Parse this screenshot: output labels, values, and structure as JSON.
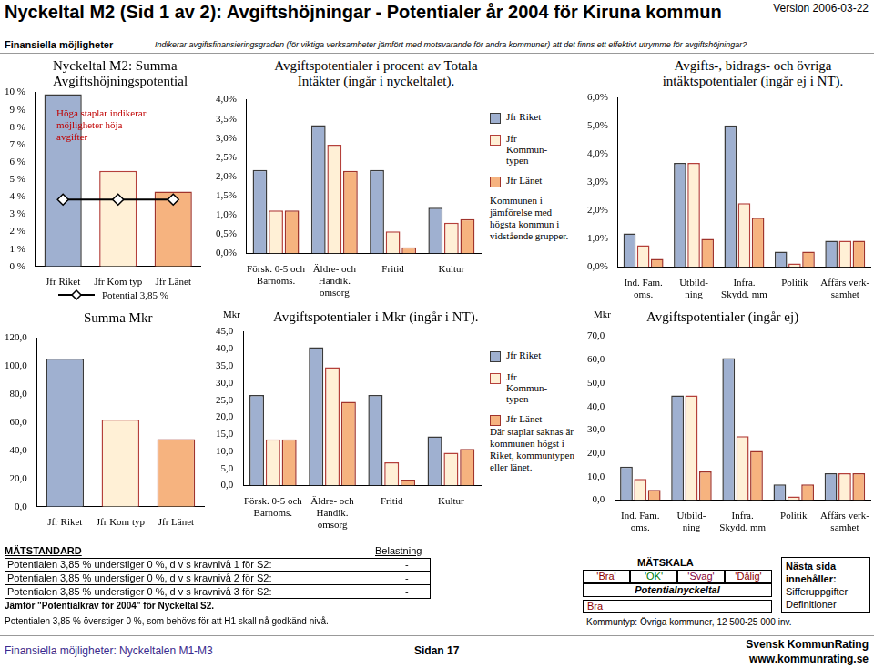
{
  "header": {
    "title": "Nyckeltal M2 (Sid 1 av 2): Avgiftshöjningar - Potentialer år 2004 för Kiruna kommun",
    "version": "Version 2006-03-22",
    "section": "Finansiella möjligheter",
    "description": "Indikerar avgiftsfinansieringsgraden (för viktiga verksamheter jämfört med motsvarande för andra kommuner) att det finns ett effektivt utrymme för avgiftshöjningar?"
  },
  "chart_data": [
    {
      "type": "bar",
      "title": "Nyckeltal M2: Summa Avgiftshöjningspotential",
      "annotation": "Höga staplar indikerar möjligheter höja avgifter",
      "categories": [
        "Jfr Riket",
        "Jfr Kom typ",
        "Jfr Länet"
      ],
      "values": [
        9.9,
        5.5,
        4.3
      ],
      "colors": [
        "#9fb0d0",
        "#fff0d6",
        "#f6b37f"
      ],
      "series": [
        {
          "name": "Potential 3,85 %",
          "type": "line",
          "color": "#000000",
          "marker": "diamond",
          "values": [
            3.85,
            3.85,
            3.85
          ]
        }
      ],
      "legend": "bottom",
      "ylim": [
        0,
        10
      ],
      "yticks": [
        {
          "value": 0,
          "label": "0 %"
        },
        {
          "value": 1,
          "label": "1 %"
        },
        {
          "value": 2,
          "label": "2 %"
        },
        {
          "value": 3,
          "label": "3 %"
        },
        {
          "value": 4,
          "label": "4 %"
        },
        {
          "value": 5,
          "label": "5 %"
        },
        {
          "value": 6,
          "label": "6 %"
        },
        {
          "value": 7,
          "label": "7 %"
        },
        {
          "value": 8,
          "label": "8 %"
        },
        {
          "value": 9,
          "label": "9 %"
        },
        {
          "value": 10,
          "label": "10 %"
        }
      ],
      "grid": false
    },
    {
      "type": "bar",
      "title": "Avgiftspotentialer i procent av Totala Intäkter (ingår i nyckeltalet).",
      "annotation": "Kommunen i jämförelse med högsta kommun i vidstående grupper.",
      "categories": [
        "Försk. 0-5 och\nBarnoms.",
        "Äldre- och\nHandik.\nomsorg",
        "Fritid",
        "Kultur"
      ],
      "series": [
        {
          "name": "Jfr Riket",
          "color": "#9fb0d0",
          "values": [
            2.17,
            3.34,
            2.17,
            1.19
          ]
        },
        {
          "name": "Jfr Kommun-typen",
          "color": "#fff0d6",
          "values": [
            1.12,
            2.83,
            0.57,
            0.8
          ]
        },
        {
          "name": "Jfr Länet",
          "color": "#f6b37f",
          "values": [
            1.12,
            2.15,
            0.16,
            0.89
          ]
        }
      ],
      "legend": "right",
      "ylim": [
        0,
        4
      ],
      "yticks": [
        {
          "value": 0,
          "label": "0,0%"
        },
        {
          "value": 0.5,
          "label": "0,5%"
        },
        {
          "value": 1,
          "label": "1,0%"
        },
        {
          "value": 1.5,
          "label": "1,5%"
        },
        {
          "value": 2,
          "label": "2,0%"
        },
        {
          "value": 2.5,
          "label": "2,5%"
        },
        {
          "value": 3,
          "label": "3,0%"
        },
        {
          "value": 3.5,
          "label": "3,5%"
        },
        {
          "value": 4,
          "label": "4,0%"
        }
      ],
      "grid": false
    },
    {
      "type": "bar",
      "title": "Avgifts-, bidrags- och övriga intäktspotentialer (ingår ej i NT).",
      "categories": [
        "Ind. Fam.\noms.",
        "Utbild-\nning",
        "Infra.\nSkydd. mm",
        "Politik",
        "Affärs verk-\nsamhet"
      ],
      "series": [
        {
          "name": "Jfr Riket",
          "color": "#9fb0d0",
          "values": [
            1.2,
            3.7,
            5.03,
            0.55,
            0.94
          ]
        },
        {
          "name": "Jfr Kommun-typen",
          "color": "#fff0d6",
          "values": [
            0.78,
            3.7,
            2.27,
            0.13,
            0.94
          ]
        },
        {
          "name": "Jfr Länet",
          "color": "#f6b37f",
          "values": [
            0.29,
            1.0,
            1.75,
            0.55,
            0.94
          ]
        }
      ],
      "ylim": [
        0,
        6
      ],
      "yticks": [
        {
          "value": 0,
          "label": "0,0%"
        },
        {
          "value": 1,
          "label": "1,0%"
        },
        {
          "value": 2,
          "label": "2,0%"
        },
        {
          "value": 3,
          "label": "3,0%"
        },
        {
          "value": 4,
          "label": "4,0%"
        },
        {
          "value": 5,
          "label": "5,0%"
        },
        {
          "value": 6,
          "label": "6,0%"
        }
      ],
      "grid": false
    },
    {
      "type": "bar",
      "title": "Summa Mkr",
      "categories": [
        "Jfr Riket",
        "Jfr Kom typ",
        "Jfr Länet"
      ],
      "values": [
        105.5,
        62,
        48.2
      ],
      "colors": [
        "#9fb0d0",
        "#fff0d6",
        "#f6b37f"
      ],
      "ylim": [
        0,
        120
      ],
      "yticks": [
        {
          "value": 0,
          "label": "0,0"
        },
        {
          "value": 20,
          "label": "20,0"
        },
        {
          "value": 40,
          "label": "40,0"
        },
        {
          "value": 60,
          "label": "60,0"
        },
        {
          "value": 80,
          "label": "80,0"
        },
        {
          "value": 100,
          "label": "100,0"
        },
        {
          "value": 120,
          "label": "120,0"
        }
      ],
      "grid": false
    },
    {
      "type": "bar",
      "title": "Avgiftspotentialer i Mkr (ingår i NT).",
      "ylabel": "Mkr",
      "annotation": "Där staplar saknas är kommunen högst i Riket, kommuntypen eller länet.",
      "categories": [
        "Försk. 0-5 och\nBarnoms.",
        "Äldre- och\nHandik.\nomsorg",
        "Fritid",
        "Kultur"
      ],
      "series": [
        {
          "name": "Jfr Riket",
          "color": "#9fb0d0",
          "values": [
            26.5,
            40.5,
            26.5,
            14.4
          ]
        },
        {
          "name": "Jfr Kommun-typen",
          "color": "#fff0d6",
          "values": [
            13.5,
            34.6,
            6.8,
            9.6
          ]
        },
        {
          "name": "Jfr Länet",
          "color": "#f6b37f",
          "values": [
            13.5,
            24.5,
            1.7,
            10.7
          ]
        }
      ],
      "legend": "right",
      "ylim": [
        0,
        45
      ],
      "yticks": [
        {
          "value": 0,
          "label": "0,0"
        },
        {
          "value": 5,
          "label": "5,0"
        },
        {
          "value": 10,
          "label": "10,0"
        },
        {
          "value": 15,
          "label": "15,0"
        },
        {
          "value": 20,
          "label": "20,0"
        },
        {
          "value": 25,
          "label": "25,0"
        },
        {
          "value": 30,
          "label": "30,0"
        },
        {
          "value": 35,
          "label": "35,0"
        },
        {
          "value": 40,
          "label": "40,0"
        },
        {
          "value": 45,
          "label": "45,0"
        }
      ],
      "grid": false
    },
    {
      "type": "bar",
      "title": "Avgiftspotentialer (ingår ej)",
      "ylabel": "Mkr",
      "categories": [
        "Ind. Fam.\noms.",
        "Utbild-\nning",
        "Infra.\nSkydd. mm",
        "Politik",
        "Affärs verk-\nsamhet"
      ],
      "series": [
        {
          "name": "Jfr Riket",
          "color": "#9fb0d0",
          "values": [
            14.3,
            44.8,
            60.7,
            6.7,
            11.5
          ]
        },
        {
          "name": "Jfr Kommun-typen",
          "color": "#fff0d6",
          "values": [
            9.1,
            44.8,
            27.4,
            1.6,
            11.5
          ]
        },
        {
          "name": "Jfr Länet",
          "color": "#f6b37f",
          "values": [
            4.4,
            12.3,
            21.0,
            6.7,
            11.5
          ]
        }
      ],
      "ylim": [
        0,
        70
      ],
      "yticks": [
        {
          "value": 0,
          "label": "0,0"
        },
        {
          "value": 10,
          "label": "10,0"
        },
        {
          "value": 20,
          "label": "20,0"
        },
        {
          "value": 30,
          "label": "30,0"
        },
        {
          "value": 40,
          "label": "40,0"
        },
        {
          "value": 50,
          "label": "50,0"
        },
        {
          "value": 60,
          "label": "60,0"
        },
        {
          "value": 70,
          "label": "70,0"
        }
      ],
      "grid": false
    }
  ],
  "standard": {
    "title": "MÄTSTANDARD",
    "load_title": "Belastning",
    "rows": [
      {
        "text": "Potentialen 3,85 % understiger 0 %, d v s kravnivå 1 för S2:",
        "load": "-"
      },
      {
        "text": "Potentialen 3,85 % understiger 0 %, d v s kravnivå 2 för S2:",
        "load": "-"
      },
      {
        "text": "Potentialen 3,85 % understiger 0 %, d v s kravnivå 3 för S2:",
        "load": "-"
      }
    ],
    "notes": [
      "Jämför \"Potentialkrav för 2004\" för Nyckeltal S2.",
      "Potentialen 3,85 % överstiger 0 %, som behövs för att H1 skall nå godkänd nivå."
    ]
  },
  "scale": {
    "title": "MÄTSKALA",
    "levels": [
      "'Bra'",
      "'OK'",
      "'Svag'",
      "'Dålig'"
    ],
    "label": "Potentialnyckeltal",
    "result": "Bra",
    "municipality_type": "Kommuntyp: Övriga kommuner, 12 500-25 000 inv."
  },
  "next_page": {
    "title": "Nästa sida innehåller:",
    "items": [
      "Sifferuppgifter",
      "Definitioner"
    ]
  },
  "footer": {
    "left": "Finansiella möjligheter: Nyckeltalen M1-M3",
    "page": "Sidan 17",
    "brand": "Svensk KommunRating",
    "url": "www.kommunrating.se"
  }
}
